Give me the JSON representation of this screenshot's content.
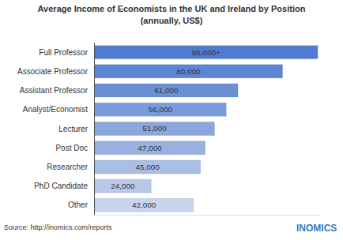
{
  "chart_data": {
    "type": "bar",
    "orientation": "horizontal",
    "title": "Average Income of Economists in the UK and Ireland by Position",
    "subtitle": "(annually, US$)",
    "categories": [
      "Full Professor",
      "Associate Professor",
      "Assistant Professor",
      "Analyst/Economist",
      "Lecturer",
      "Post Doc",
      "Researcher",
      "PhD Candidate",
      "Other"
    ],
    "values": [
      95000,
      80000,
      61000,
      56000,
      51000,
      47000,
      45000,
      24000,
      42000
    ],
    "value_labels": [
      "95,000+",
      "80,000",
      "61,000",
      "56,000",
      "51,000",
      "47,000",
      "45,000",
      "24,000",
      "42,000"
    ],
    "colors": [
      "#4f7bd0",
      "#5c85d3",
      "#6b90d6",
      "#7a9bd9",
      "#8aa6dc",
      "#9ab1e0",
      "#aabde4",
      "#b9c8e8",
      "#c8d4ec"
    ],
    "xlim": [
      0,
      96000
    ],
    "data_labels": true,
    "tick_labels": "y",
    "grid": false,
    "annotations": [
      "Source: http://inomics.com/reports",
      "INOMICS"
    ]
  }
}
